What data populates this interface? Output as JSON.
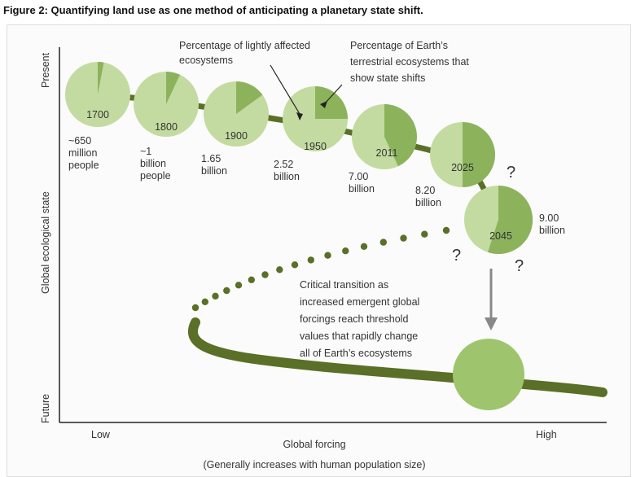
{
  "title": "Figure 2: Quantifying land use as one method of anticipating a planetary state shift.",
  "axes": {
    "y_label": "Global ecological state",
    "y_top": "Present",
    "y_bottom": "Future",
    "x_label": "Global forcing",
    "x_sublabel": "(Generally increases with human population size)",
    "x_low": "Low",
    "x_high": "High"
  },
  "annotations": {
    "lightly_affected": [
      "Percentage of lightly affected",
      "ecosystems"
    ],
    "state_shifts": [
      "Percentage of Earth’s",
      "terrestrial ecosystems that",
      "show state shifts"
    ],
    "critical_transition": [
      "Critical transition as",
      "increased emergent global",
      "forcings reach threshold",
      "values that rapidly change",
      "all of Earth’s ecosystems"
    ]
  },
  "circles": [
    {
      "year": "1700",
      "population": [
        "~650",
        "million",
        "people"
      ],
      "affected_fraction": 0.03
    },
    {
      "year": "1800",
      "population": [
        "~1",
        "billion",
        "people"
      ],
      "affected_fraction": 0.07
    },
    {
      "year": "1900",
      "population": [
        "1.65",
        "billion"
      ],
      "affected_fraction": 0.15
    },
    {
      "year": "1950",
      "population": [
        "2.52",
        "billion"
      ],
      "affected_fraction": 0.25
    },
    {
      "year": "2011",
      "population": [
        "7.00",
        "billion"
      ],
      "affected_fraction": 0.43
    },
    {
      "year": "2025",
      "population": [
        "8.20",
        "billion"
      ],
      "affected_fraction": 0.5
    },
    {
      "year": "2045",
      "population": [
        "9.00",
        "billion"
      ],
      "affected_fraction": 0.55
    }
  ],
  "question_mark": "?",
  "colors": {
    "light_green": "#c3dba0",
    "dark_green": "#8cb35c",
    "curve": "#5a6f27",
    "arrow": "#888888",
    "axis": "#222222"
  }
}
